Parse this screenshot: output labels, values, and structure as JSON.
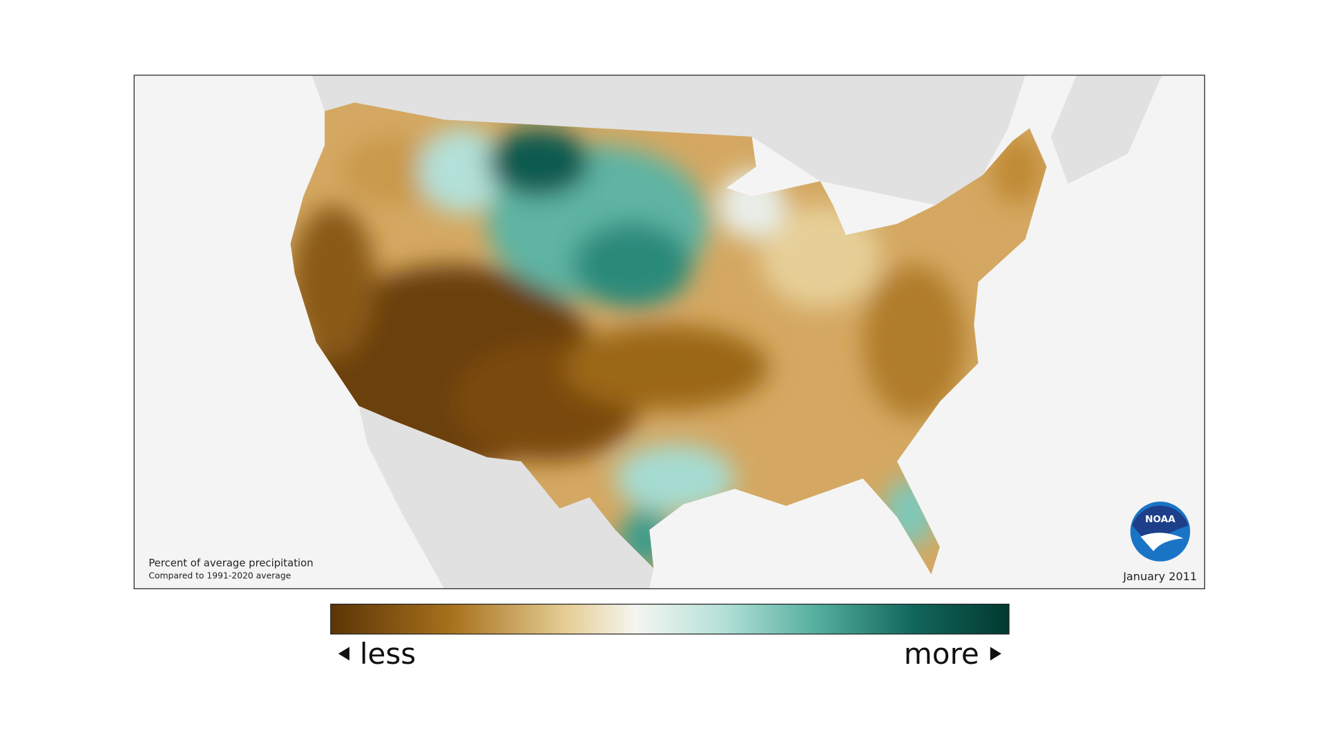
{
  "map": {
    "caption_title": "Percent of average precipitation",
    "caption_subtitle": "Compared to 1991-2020 average",
    "date": "January 2011",
    "logo": "NOAA"
  },
  "legend": {
    "low_label": "less",
    "high_label": "more"
  }
}
